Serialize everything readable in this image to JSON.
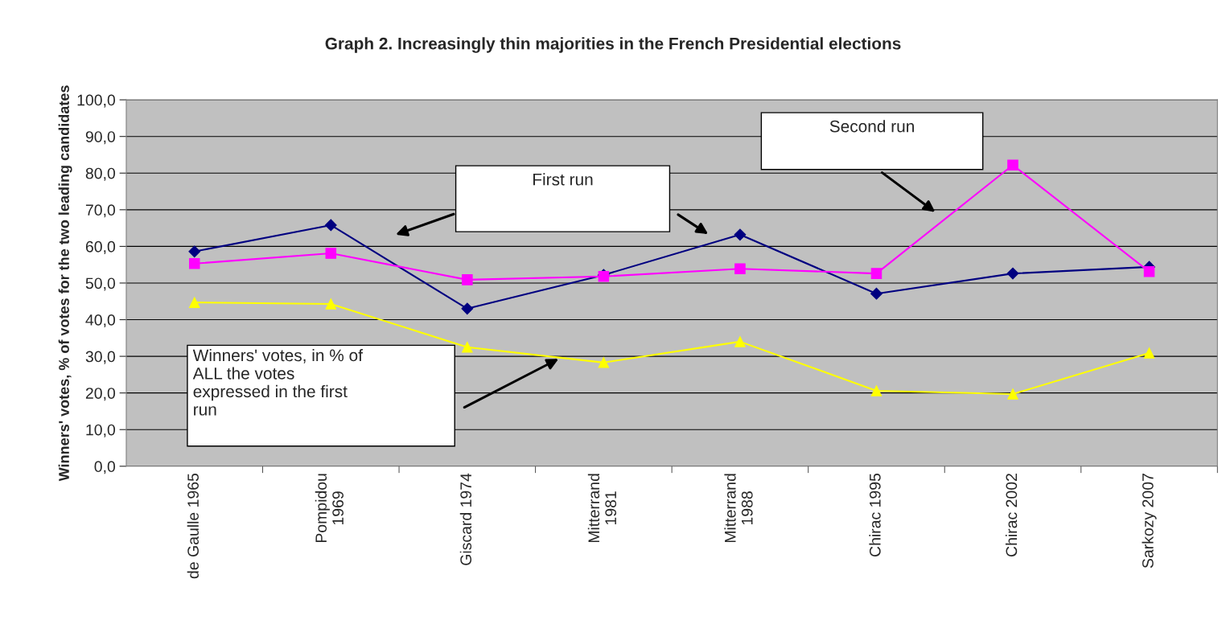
{
  "chart_data": {
    "type": "line",
    "title": "Graph 2. Increasingly thin majorities in the French Presidential elections",
    "ylabel": "Winners' votes, % of votes for the two leading candidates",
    "categories": [
      "de Gaulle 1965",
      "Pompidou\n1969",
      "Giscard 1974",
      "Mitterrand\n1981",
      "Mitterrand\n1988",
      "Chirac 1995",
      "Chirac 2002",
      "Sarkozy 2007"
    ],
    "series": [
      {
        "color": "#000080",
        "marker": "diamond",
        "values": [
          58.6,
          65.8,
          43.0,
          52.2,
          63.2,
          47.1,
          52.6,
          54.4
        ]
      },
      {
        "color": "#ff00ff",
        "marker": "square",
        "values": [
          55.3,
          58.1,
          50.9,
          51.8,
          53.9,
          52.6,
          82.2,
          53.1
        ]
      },
      {
        "color": "#ffff00",
        "marker": "triangle",
        "values": [
          44.7,
          44.3,
          32.5,
          28.3,
          34.0,
          20.6,
          19.7,
          30.9
        ]
      }
    ],
    "annotations": [
      "First run",
      "Second run",
      "Winners' votes, in % of\nALL the votes\nexpressed in the first\nrun"
    ],
    "ylim": [
      0,
      100
    ],
    "yticks": [
      {
        "value": 0,
        "label": "0,0"
      },
      {
        "value": 10,
        "label": "10,0"
      },
      {
        "value": 20,
        "label": "20,0"
      },
      {
        "value": 30,
        "label": "30,0"
      },
      {
        "value": 40,
        "label": "40,0"
      },
      {
        "value": 50,
        "label": "50,0"
      },
      {
        "value": 60,
        "label": "60,0"
      },
      {
        "value": 70,
        "label": "70,0"
      },
      {
        "value": 80,
        "label": "80,0"
      },
      {
        "value": 90,
        "label": "90,0"
      },
      {
        "value": 100,
        "label": "100,0"
      }
    ],
    "grid": "y",
    "legend": false
  }
}
